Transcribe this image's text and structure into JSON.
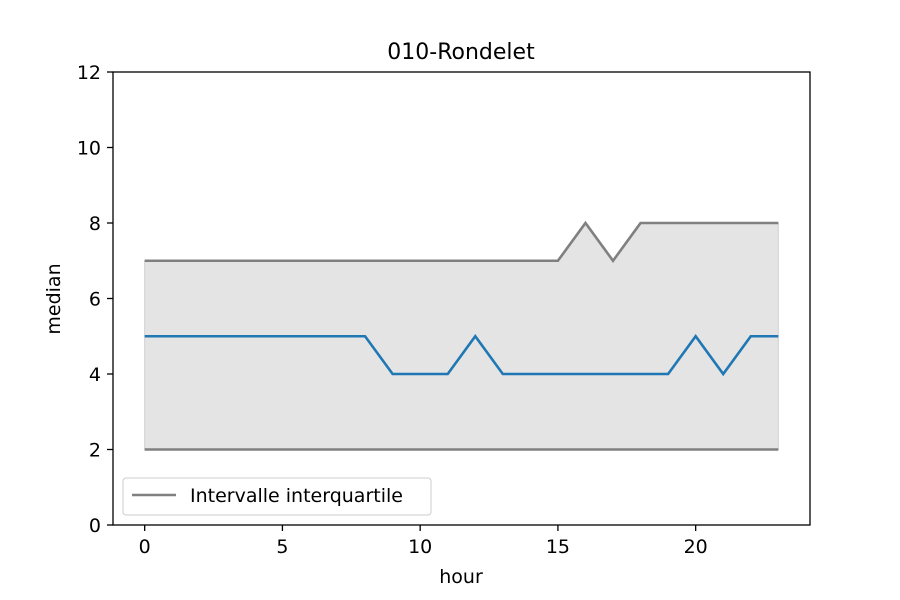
{
  "chart_data": {
    "type": "line",
    "title": "010-Rondelet",
    "xlabel": "hour",
    "ylabel": "median",
    "xlim": [
      -1.15,
      24.15
    ],
    "ylim": [
      0,
      12
    ],
    "xticks": [
      0,
      5,
      10,
      15,
      20
    ],
    "yticks": [
      0,
      2,
      4,
      6,
      8,
      10,
      12
    ],
    "grid": false,
    "legend": {
      "placement": "lower-left",
      "entries": [
        "Intervalle interquartile"
      ]
    },
    "x": [
      0,
      1,
      2,
      3,
      4,
      5,
      6,
      7,
      8,
      9,
      10,
      11,
      12,
      13,
      14,
      15,
      16,
      17,
      18,
      19,
      20,
      21,
      22,
      23
    ],
    "series": [
      {
        "role": "median",
        "color": "#1f77b4",
        "values": [
          5,
          5,
          5,
          5,
          5,
          5,
          5,
          5,
          5,
          4,
          4,
          4,
          5,
          4,
          4,
          4,
          4,
          4,
          4,
          4,
          5,
          4,
          5,
          5
        ]
      },
      {
        "role": "upper-quartile",
        "name": "Intervalle interquartile",
        "color": "#808080",
        "values": [
          7,
          7,
          7,
          7,
          7,
          7,
          7,
          7,
          7,
          7,
          7,
          7,
          7,
          7,
          7,
          7,
          8,
          7,
          8,
          8,
          8,
          8,
          8,
          8
        ]
      },
      {
        "role": "lower-quartile",
        "color": "#808080",
        "values": [
          2,
          2,
          2,
          2,
          2,
          2,
          2,
          2,
          2,
          2,
          2,
          2,
          2,
          2,
          2,
          2,
          2,
          2,
          2,
          2,
          2,
          2,
          2,
          2
        ]
      }
    ],
    "band": {
      "between": [
        "upper-quartile",
        "lower-quartile"
      ],
      "color": "#e4e4e4"
    }
  }
}
